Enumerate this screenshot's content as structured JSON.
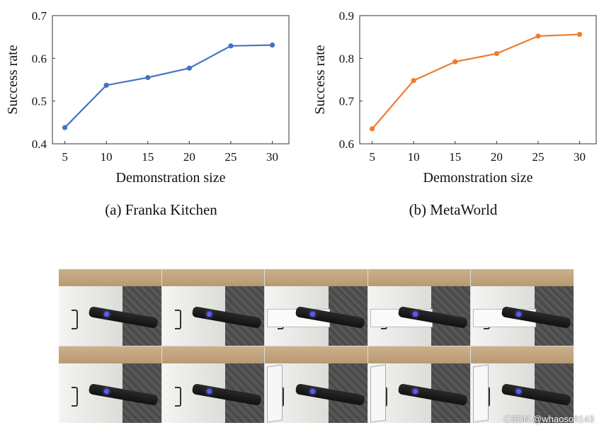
{
  "chart_data": [
    {
      "type": "line",
      "panel": "a",
      "caption": "(a) Franka Kitchen",
      "xlabel": "Demonstration size",
      "ylabel": "Success rate",
      "x": [
        5,
        10,
        15,
        20,
        25,
        30
      ],
      "xticks": [
        "5",
        "10",
        "15",
        "20",
        "25",
        "30"
      ],
      "yticks": [
        "0.4",
        "0.5",
        "0.6",
        "0.7"
      ],
      "ylim": [
        0.4,
        0.7
      ],
      "xlim": [
        3.5,
        32
      ],
      "series": [
        {
          "values": [
            0.438,
            0.537,
            0.555,
            0.577,
            0.629,
            0.631
          ],
          "color": "#4472c4"
        }
      ],
      "grid": false
    },
    {
      "type": "line",
      "panel": "b",
      "caption": "(b) MetaWorld",
      "xlabel": "Demonstration size",
      "ylabel": "Success rate",
      "x": [
        5,
        10,
        15,
        20,
        25,
        30
      ],
      "xticks": [
        "5",
        "10",
        "15",
        "20",
        "25",
        "30"
      ],
      "yticks": [
        "0.6",
        "0.7",
        "0.8",
        "0.9"
      ],
      "ylim": [
        0.6,
        0.9
      ],
      "xlim": [
        3.5,
        32
      ],
      "series": [
        {
          "values": [
            0.635,
            0.748,
            0.792,
            0.811,
            0.852,
            0.856
          ],
          "color": "#ed7d31"
        }
      ],
      "grid": false
    }
  ],
  "photos": {
    "frames": [
      {
        "variant": "arm"
      },
      {
        "variant": "arm"
      },
      {
        "variant": "drawer"
      },
      {
        "variant": "drawer"
      },
      {
        "variant": "drawer"
      },
      {
        "variant": "arm"
      },
      {
        "variant": "arm"
      },
      {
        "variant": "door"
      },
      {
        "variant": "door"
      },
      {
        "variant": "door"
      }
    ]
  },
  "watermark": "CSDN @whaosoft143"
}
